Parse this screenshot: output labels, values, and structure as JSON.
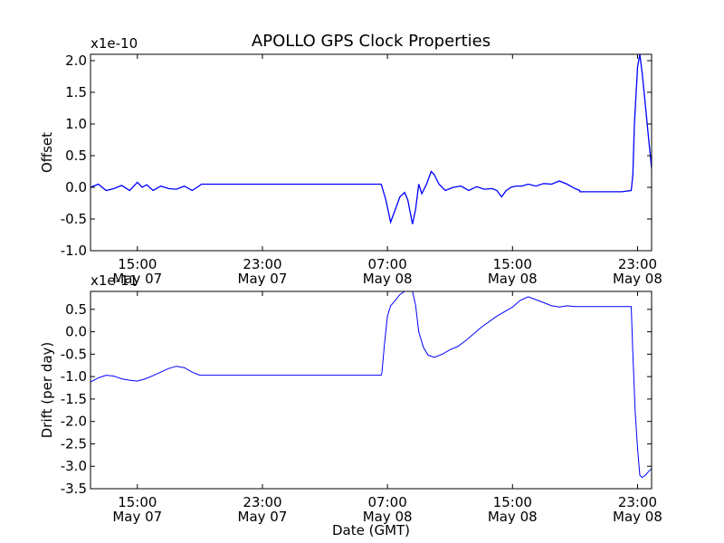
{
  "title": "APOLLO GPS Clock Properties",
  "xlabel": "Date (GMT)",
  "colors": {
    "line": "#0000ff",
    "axes": "#000000",
    "background": "#ffffff"
  },
  "x_ticks": [
    {
      "hour": 15,
      "time": "15:00",
      "date": "May 07"
    },
    {
      "hour": 23,
      "time": "23:00",
      "date": "May 07"
    },
    {
      "hour": 31,
      "time": "07:00",
      "date": "May 08"
    },
    {
      "hour": 39,
      "time": "15:00",
      "date": "May 08"
    },
    {
      "hour": 47,
      "time": "23:00",
      "date": "May 08"
    }
  ],
  "chart_data": [
    {
      "type": "line",
      "name": "offset",
      "ylabel": "Offset",
      "exponent_label": "x1e-10",
      "xlim": [
        12.0,
        47.9
      ],
      "ylim": [
        -1.0,
        2.1
      ],
      "yticks": [
        -1.0,
        -0.5,
        0.0,
        0.5,
        1.0,
        1.5,
        2.0
      ],
      "ytick_labels": [
        "-1.0",
        "-0.5",
        "0.0",
        "0.5",
        "1.0",
        "1.5",
        "2.0"
      ],
      "series": [
        {
          "name": "Offset",
          "x": [
            12.0,
            12.5,
            13.0,
            13.5,
            14.0,
            14.5,
            15.0,
            15.3,
            15.6,
            16.0,
            16.5,
            17.0,
            17.5,
            18.0,
            18.5,
            19.0,
            19.1,
            20.0,
            22.0,
            24.0,
            26.0,
            28.0,
            30.0,
            30.6,
            30.9,
            31.2,
            31.5,
            31.8,
            32.1,
            32.3,
            32.6,
            32.8,
            33.0,
            33.2,
            33.5,
            33.8,
            34.0,
            34.3,
            34.7,
            35.2,
            35.7,
            36.2,
            36.7,
            37.2,
            37.7,
            38.0,
            38.3,
            38.6,
            38.9,
            39.2,
            39.6,
            40.0,
            40.5,
            41.0,
            41.5,
            42.0,
            42.5,
            43.0,
            43.3,
            43.31,
            44.0,
            46.0,
            46.6,
            46.7,
            46.8,
            47.0,
            47.15,
            47.3,
            47.5,
            47.7,
            47.9
          ],
          "y": [
            0.0,
            0.05,
            -0.05,
            -0.02,
            0.03,
            -0.05,
            0.08,
            0.0,
            0.04,
            -0.05,
            0.02,
            -0.02,
            -0.03,
            0.02,
            -0.05,
            0.03,
            0.05,
            0.05,
            0.05,
            0.05,
            0.05,
            0.05,
            0.05,
            0.05,
            -0.2,
            -0.55,
            -0.35,
            -0.15,
            -0.08,
            -0.2,
            -0.58,
            -0.35,
            0.05,
            -0.1,
            0.05,
            0.25,
            0.2,
            0.05,
            -0.05,
            0.0,
            0.02,
            -0.05,
            0.01,
            -0.03,
            -0.02,
            -0.05,
            -0.15,
            -0.05,
            0.0,
            0.02,
            0.02,
            0.05,
            0.02,
            0.06,
            0.05,
            0.1,
            0.05,
            -0.02,
            -0.05,
            -0.07,
            -0.07,
            -0.07,
            -0.05,
            0.2,
            1.0,
            1.9,
            2.1,
            1.8,
            1.3,
            0.8,
            0.3
          ]
        }
      ]
    },
    {
      "type": "line",
      "name": "drift",
      "ylabel": "Drift (per day)",
      "exponent_label": "x1e-11",
      "xlim": [
        12.0,
        47.9
      ],
      "ylim": [
        -3.5,
        0.9
      ],
      "yticks": [
        -3.5,
        -3.0,
        -2.5,
        -2.0,
        -1.5,
        -1.0,
        -0.5,
        0.0,
        0.5
      ],
      "ytick_labels": [
        "-3.5",
        "-3.0",
        "-2.5",
        "-2.0",
        "-1.5",
        "-1.0",
        "-0.5",
        "0.0",
        "0.5"
      ],
      "series": [
        {
          "name": "Drift",
          "x": [
            12.0,
            12.5,
            13.0,
            13.5,
            14.0,
            14.5,
            15.0,
            15.5,
            16.0,
            16.5,
            17.0,
            17.5,
            18.0,
            18.5,
            19.0,
            19.3,
            20.0,
            22.0,
            24.0,
            26.0,
            28.0,
            30.0,
            30.6,
            30.65,
            30.8,
            31.0,
            31.2,
            31.5,
            31.8,
            32.1,
            32.4,
            32.6,
            32.8,
            33.0,
            33.3,
            33.6,
            34.0,
            34.5,
            35.0,
            35.5,
            36.0,
            37.0,
            38.0,
            39.0,
            39.5,
            40.0,
            41.0,
            41.5,
            42.0,
            42.5,
            43.0,
            44.0,
            45.0,
            46.0,
            46.6,
            46.7,
            46.85,
            47.0,
            47.15,
            47.3,
            47.5,
            47.7,
            47.9
          ],
          "y": [
            -1.12,
            -1.03,
            -0.97,
            -0.99,
            -1.05,
            -1.08,
            -1.1,
            -1.05,
            -0.98,
            -0.9,
            -0.82,
            -0.77,
            -0.8,
            -0.9,
            -0.97,
            -0.97,
            -0.97,
            -0.97,
            -0.97,
            -0.97,
            -0.97,
            -0.97,
            -0.97,
            -0.9,
            -0.3,
            0.35,
            0.58,
            0.7,
            0.83,
            0.9,
            0.92,
            0.9,
            0.6,
            0.0,
            -0.35,
            -0.52,
            -0.57,
            -0.5,
            -0.4,
            -0.33,
            -0.2,
            0.1,
            0.35,
            0.55,
            0.7,
            0.78,
            0.65,
            0.58,
            0.55,
            0.58,
            0.56,
            0.56,
            0.56,
            0.56,
            0.56,
            -0.5,
            -1.8,
            -2.6,
            -3.2,
            -3.25,
            -3.2,
            -3.12,
            -3.05
          ]
        }
      ]
    }
  ]
}
